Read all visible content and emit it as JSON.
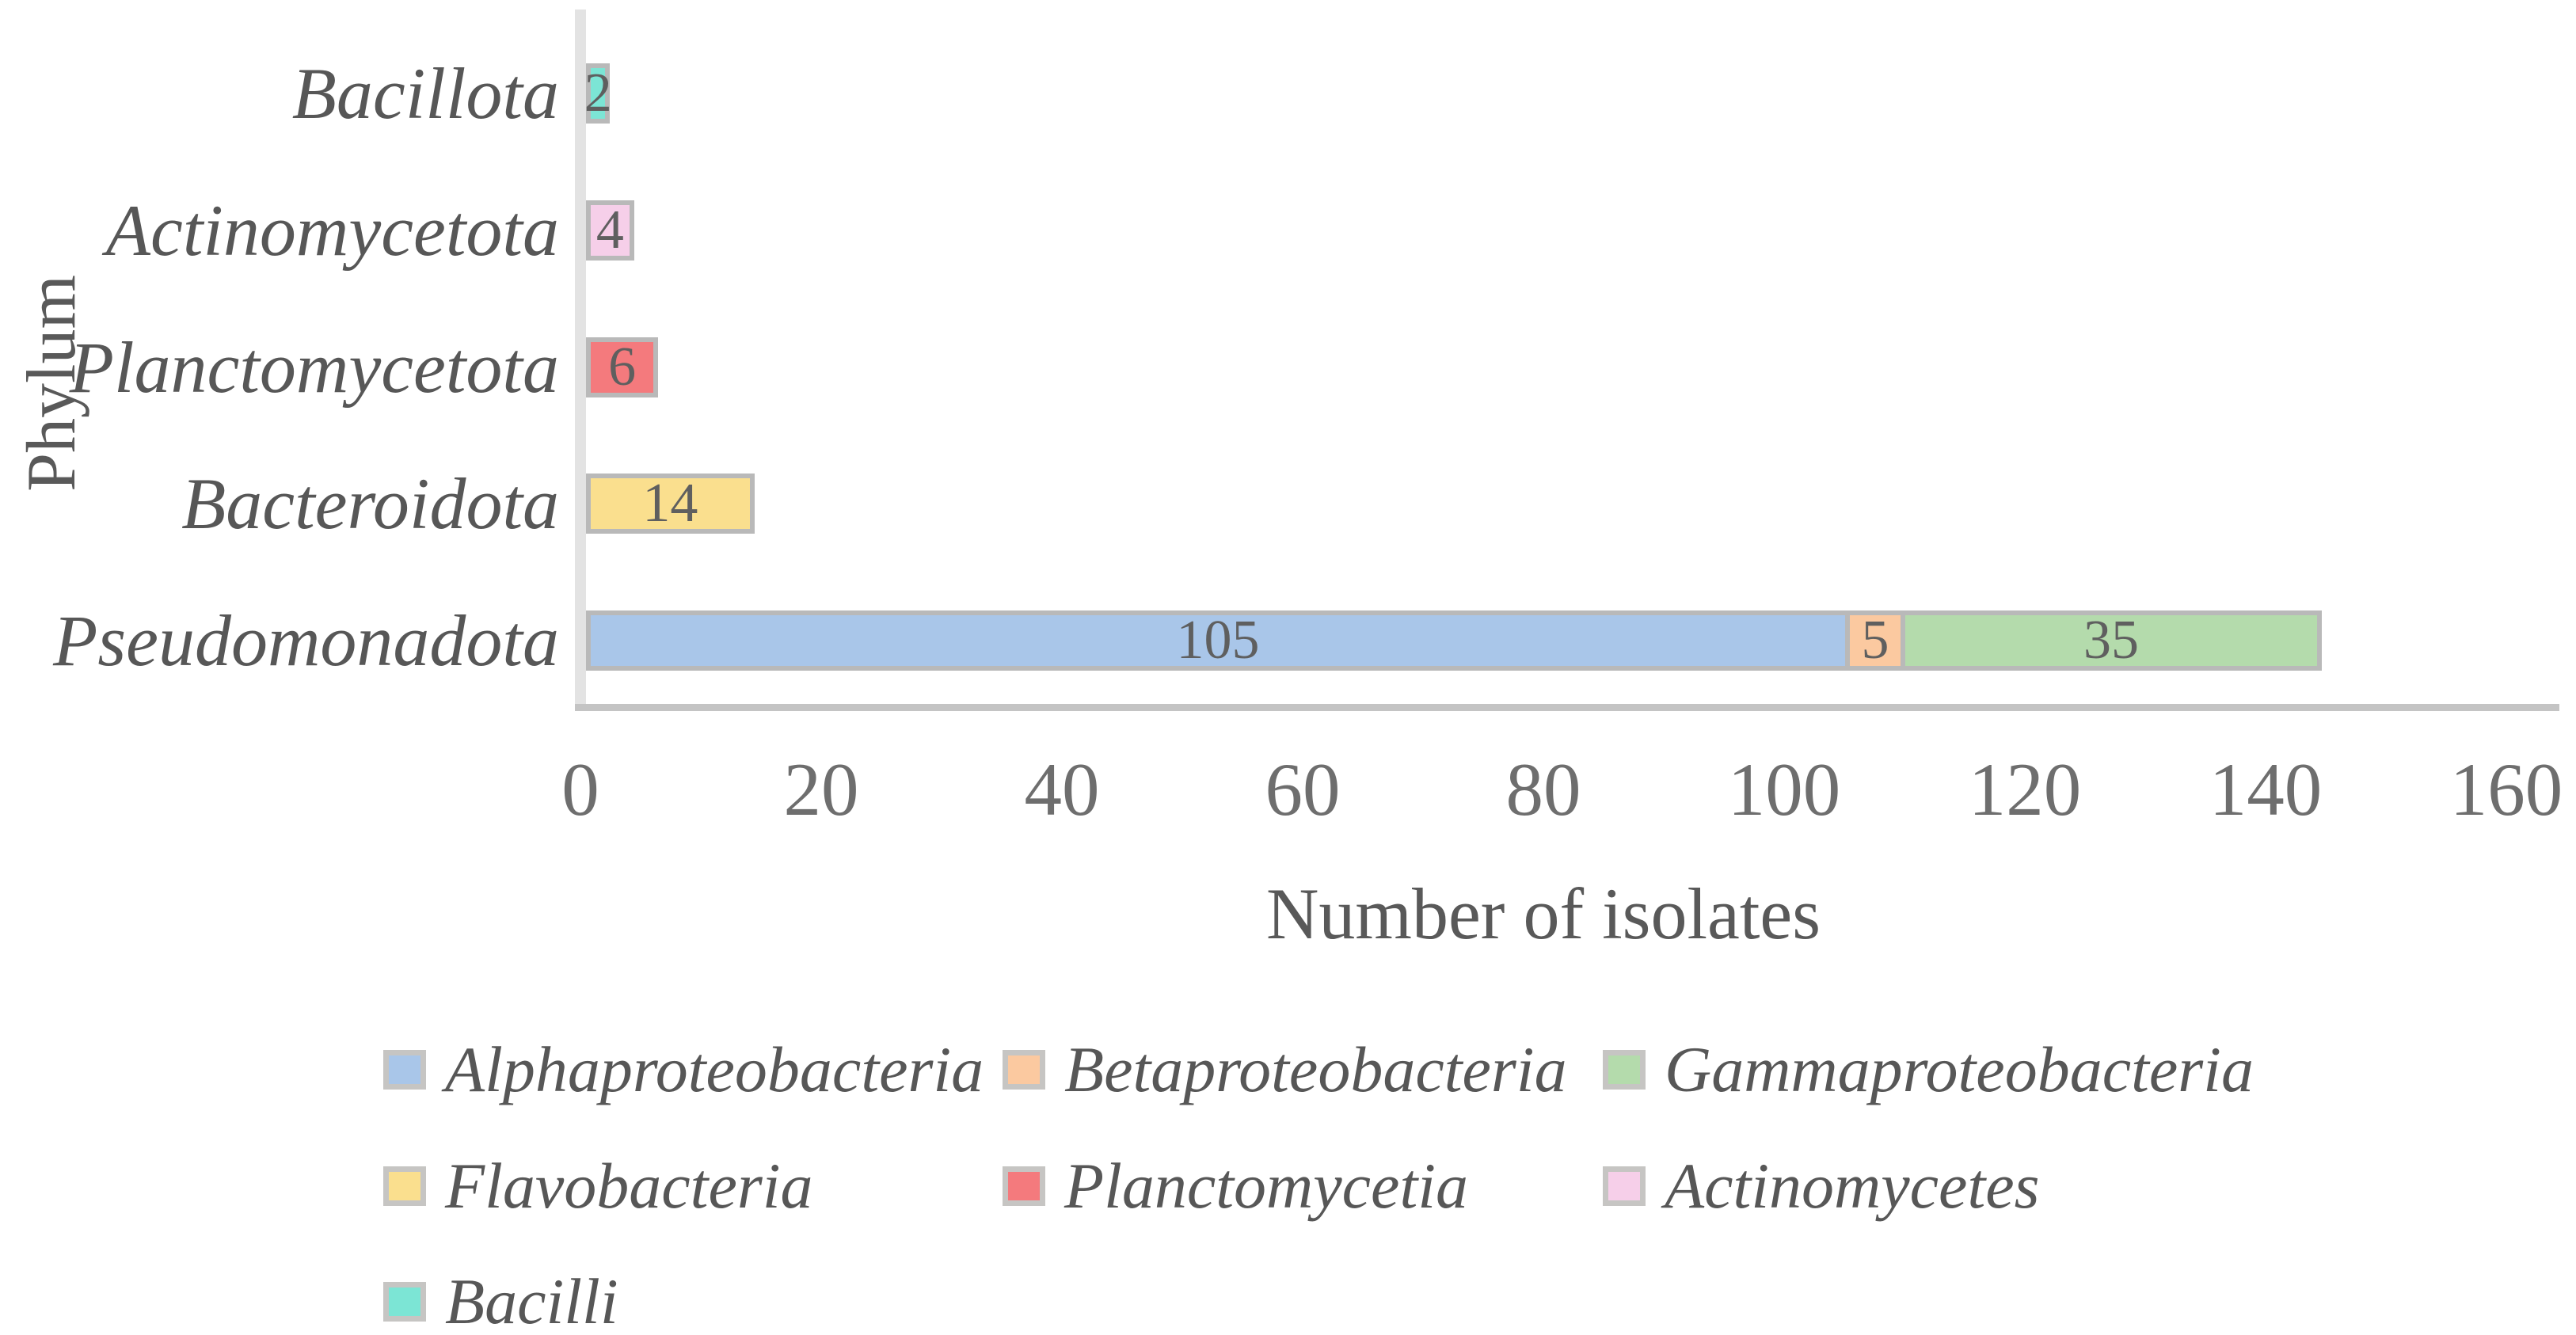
{
  "figure": {
    "x_axis_title": "Number of isolates",
    "y_axis_title": "Phylum"
  },
  "chart_data": {
    "type": "bar",
    "orientation": "horizontal-stacked",
    "title": "",
    "xlabel": "Number of isolates",
    "ylabel": "Phylum",
    "xlim": [
      0,
      160
    ],
    "xticks": [
      0,
      20,
      40,
      60,
      80,
      100,
      120,
      140,
      160
    ],
    "grid": false,
    "legend_position": "bottom",
    "categories": [
      "Bacillota",
      "Actinomycetota",
      "Planctomycetota",
      "Bacteroidota",
      "Pseudomonadota"
    ],
    "series": [
      {
        "name": "Alphaproteobacteria",
        "color": "#a9c6e9",
        "values": [
          0,
          0,
          0,
          0,
          105
        ]
      },
      {
        "name": "Betaproteobacteria",
        "color": "#fbc9a0",
        "values": [
          0,
          0,
          0,
          0,
          5
        ]
      },
      {
        "name": "Gammaproteobacteria",
        "color": "#b4dbac",
        "values": [
          0,
          0,
          0,
          0,
          35
        ]
      },
      {
        "name": "Flavobacteria",
        "color": "#fadf8e",
        "values": [
          0,
          0,
          0,
          14,
          0
        ]
      },
      {
        "name": "Planctomycetia",
        "color": "#f47a7d",
        "values": [
          0,
          0,
          6,
          0,
          0
        ]
      },
      {
        "name": "Actinomycetes",
        "color": "#f6cfe9",
        "values": [
          0,
          4,
          0,
          0,
          0
        ]
      },
      {
        "name": "Bacilli",
        "color": "#7ce5d5",
        "values": [
          2,
          0,
          0,
          0,
          0
        ]
      }
    ],
    "bar_totals": {
      "Bacillota": 2,
      "Actinomycetota": 4,
      "Planctomycetota": 6,
      "Bacteroidota": 14,
      "Pseudomonadota": 145
    },
    "style": {
      "segment_border": "#b9b9b9",
      "axis_line": "#e3e3e3",
      "baseline": "#c4c4c4",
      "text_color": "#595959"
    }
  }
}
